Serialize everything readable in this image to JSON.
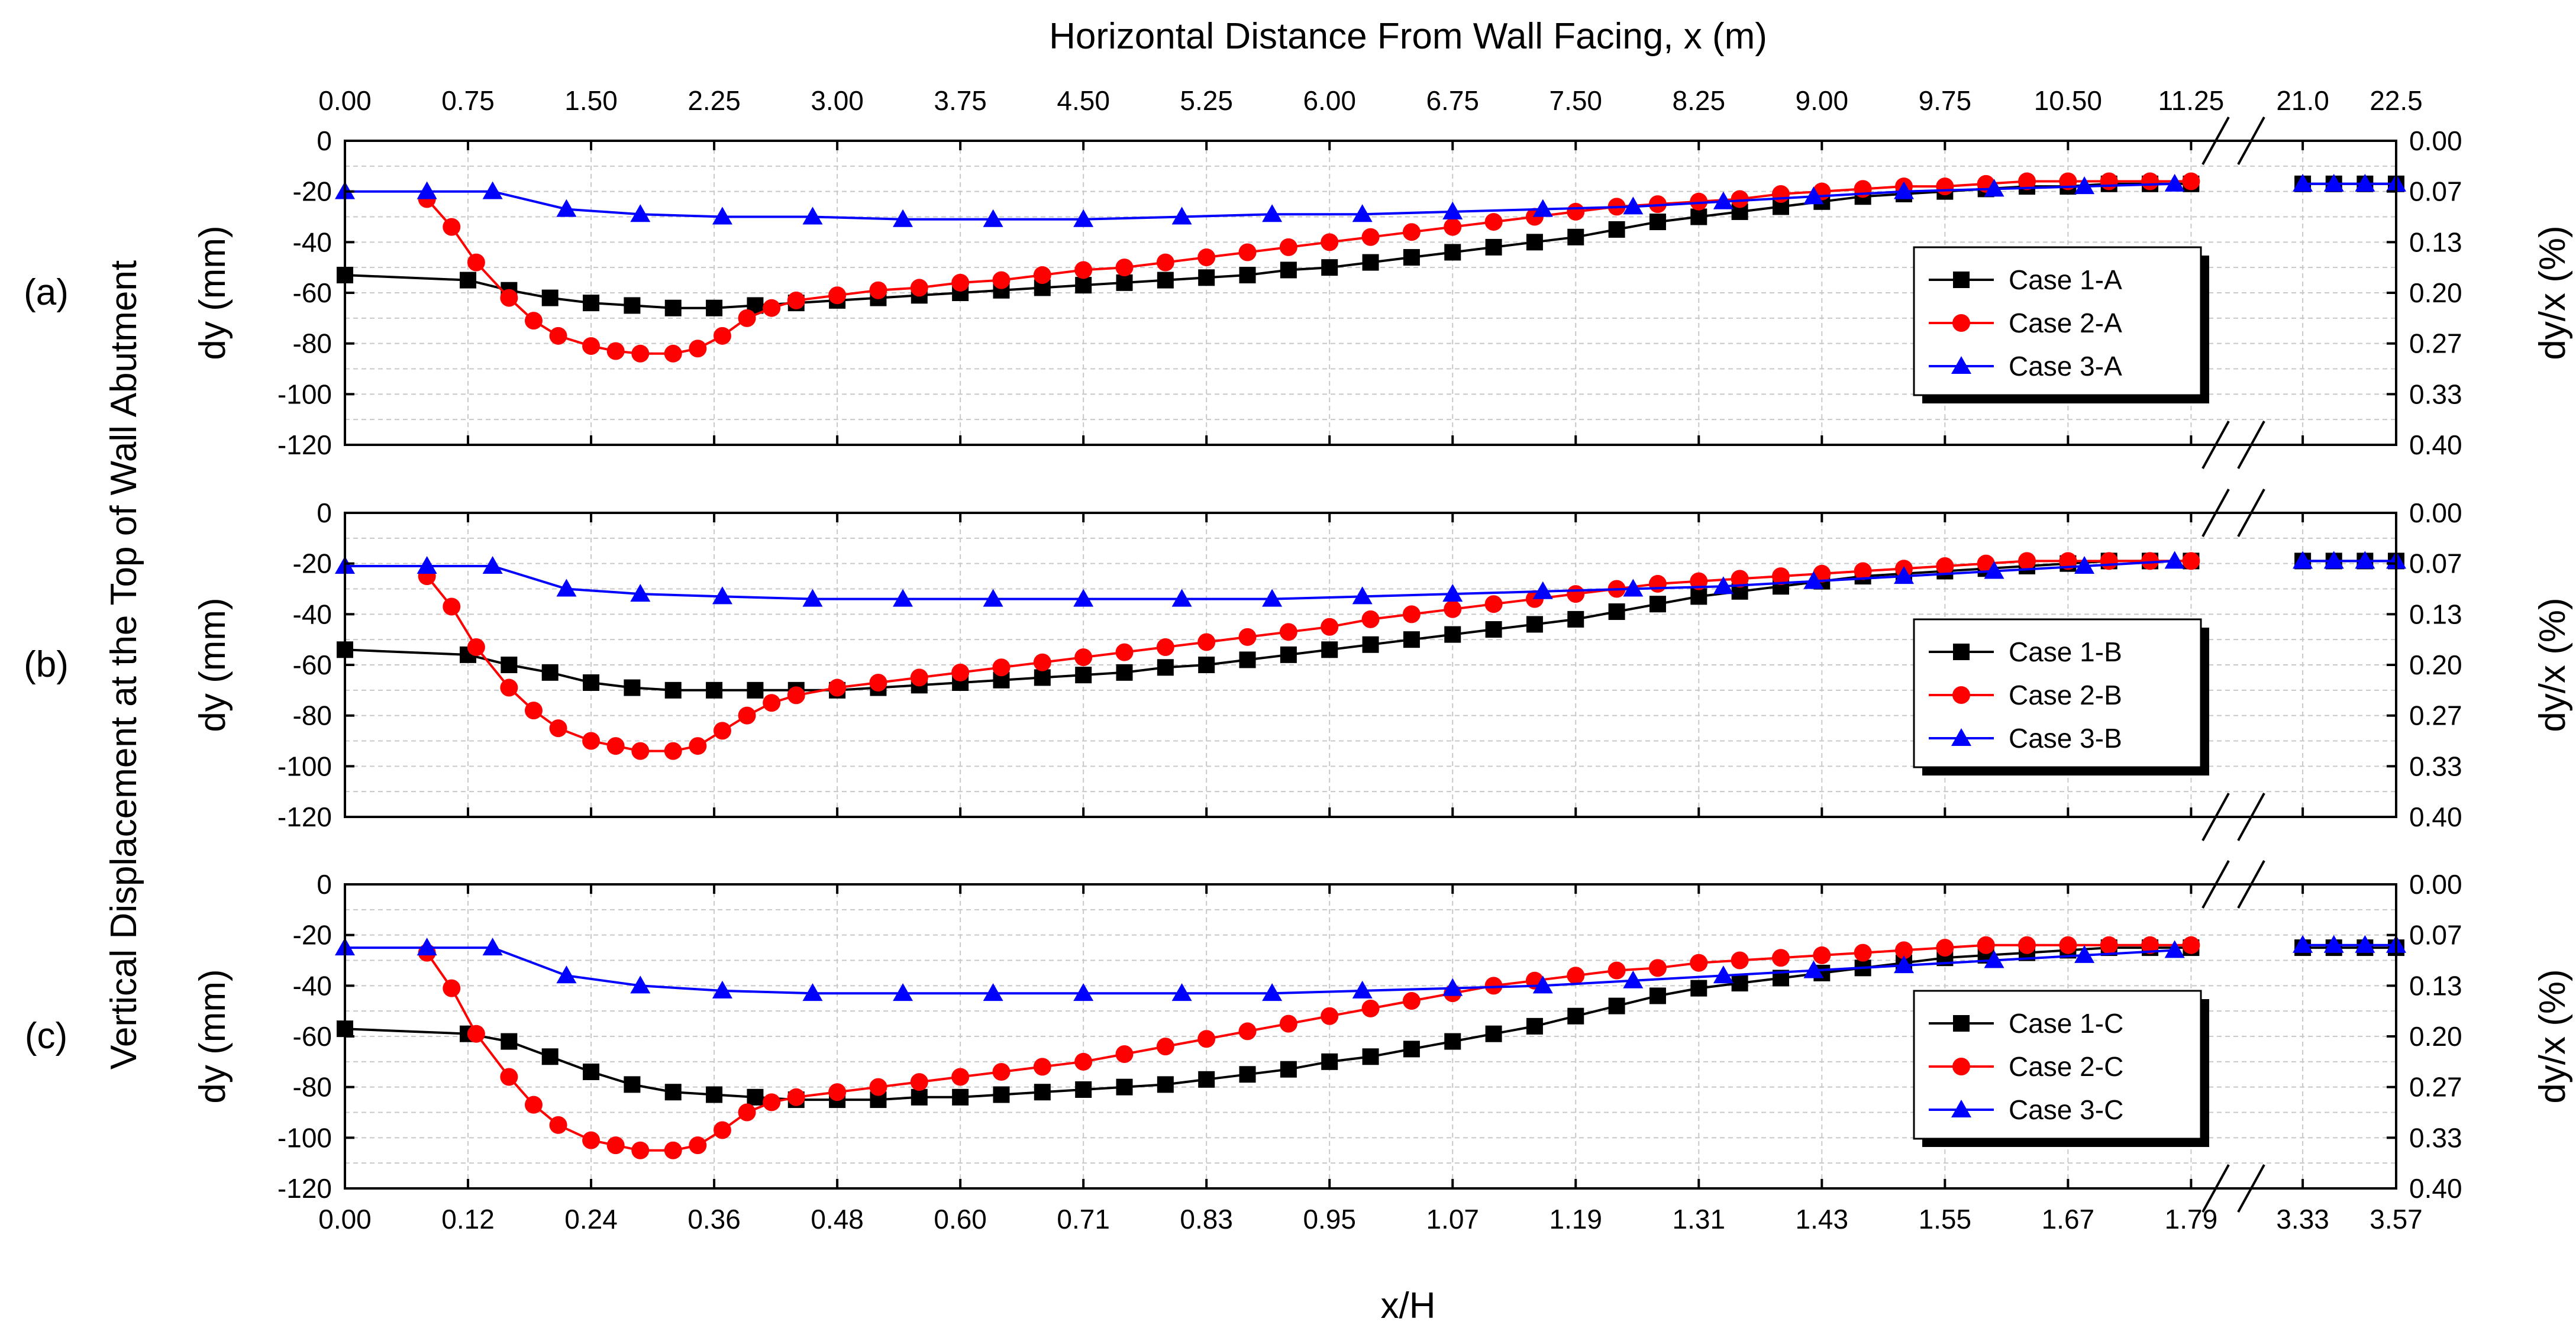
{
  "chart_data": {
    "type": "line",
    "title": "",
    "top_axis": {
      "label": "Horizontal Distance From Wall Facing, x (m)",
      "ticks": [
        "0.00",
        "0.75",
        "1.50",
        "2.25",
        "3.00",
        "3.75",
        "4.50",
        "5.25",
        "6.00",
        "6.75",
        "7.50",
        "8.25",
        "9.00",
        "9.75",
        "10.50",
        "11.25",
        "21.0",
        "22.5"
      ]
    },
    "bottom_axis": {
      "label": "x/H",
      "ticks": [
        "0.00",
        "0.12",
        "0.24",
        "0.36",
        "0.48",
        "0.60",
        "0.71",
        "0.83",
        "0.95",
        "1.07",
        "1.19",
        "1.31",
        "1.43",
        "1.55",
        "1.67",
        "1.79",
        "3.33",
        "3.57"
      ]
    },
    "y_label_common": "Vertical Displacement at the Top of Wall Abutment",
    "y_label_left": "dy (mm)",
    "y_label_right": "dy/x (%)",
    "y_ticks_left": [
      "0",
      "-20",
      "-40",
      "-60",
      "-80",
      "-100",
      "-120"
    ],
    "y_ticks_right": [
      "0.00",
      "0.07",
      "0.13",
      "0.20",
      "0.27",
      "0.33",
      "0.40"
    ],
    "ylim": [
      -120,
      0
    ],
    "x_note": "x in metres; axis break between 11.4 m and 20.6 m; 0.75 m per major tick",
    "panels": [
      {
        "label": "(a)",
        "legend_position": "right-middle",
        "series": [
          {
            "name": "Case 1-A",
            "color": "#000000",
            "marker": "square",
            "x": [
              0,
              0.75,
              1.0,
              1.25,
              1.5,
              1.75,
              2.0,
              2.25,
              2.5,
              2.75,
              3.0,
              3.25,
              3.5,
              3.75,
              4.0,
              4.25,
              4.5,
              4.75,
              5.0,
              5.25,
              5.5,
              5.75,
              6.0,
              6.25,
              6.5,
              6.75,
              7.0,
              7.25,
              7.5,
              7.75,
              8.0,
              8.25,
              8.5,
              8.75,
              9.0,
              9.25,
              9.5,
              9.75,
              10.0,
              10.25,
              10.5,
              10.75,
              11.0,
              11.25,
              21.0,
              21.5,
              22.0,
              22.5
            ],
            "y": [
              -53,
              -55,
              -59,
              -62,
              -64,
              -65,
              -66,
              -66,
              -65,
              -64,
              -63,
              -62,
              -61,
              -60,
              -59,
              -58,
              -57,
              -56,
              -55,
              -54,
              -53,
              -51,
              -50,
              -48,
              -46,
              -44,
              -42,
              -40,
              -38,
              -35,
              -32,
              -30,
              -28,
              -26,
              -24,
              -22,
              -21,
              -20,
              -19,
              -18,
              -18,
              -17,
              -17,
              -17,
              -17,
              -17,
              -17,
              -17
            ]
          },
          {
            "name": "Case 2-A",
            "color": "#ff0000",
            "marker": "circle",
            "x": [
              0.5,
              0.65,
              0.8,
              1.0,
              1.15,
              1.3,
              1.5,
              1.65,
              1.8,
              2.0,
              2.15,
              2.3,
              2.45,
              2.6,
              2.75,
              3.0,
              3.25,
              3.5,
              3.75,
              4.0,
              4.25,
              4.5,
              4.75,
              5.0,
              5.25,
              5.5,
              5.75,
              6.0,
              6.25,
              6.5,
              6.75,
              7.0,
              7.25,
              7.5,
              7.75,
              8.0,
              8.25,
              8.5,
              8.75,
              9.0,
              9.25,
              9.5,
              9.75,
              10.0,
              10.25,
              10.5,
              10.75,
              11.0,
              11.25
            ],
            "y": [
              -23,
              -34,
              -48,
              -62,
              -71,
              -77,
              -81,
              -83,
              -84,
              -84,
              -82,
              -77,
              -70,
              -66,
              -63,
              -61,
              -59,
              -58,
              -56,
              -55,
              -53,
              -51,
              -50,
              -48,
              -46,
              -44,
              -42,
              -40,
              -38,
              -36,
              -34,
              -32,
              -30,
              -28,
              -26,
              -25,
              -24,
              -23,
              -21,
              -20,
              -19,
              -18,
              -18,
              -17,
              -16,
              -16,
              -16,
              -16,
              -16
            ]
          },
          {
            "name": "Case 3-A",
            "color": "#0000ff",
            "marker": "triangle",
            "x": [
              0,
              0.5,
              0.9,
              1.35,
              1.8,
              2.3,
              2.85,
              3.4,
              3.95,
              4.5,
              5.1,
              5.65,
              6.2,
              6.75,
              7.3,
              7.85,
              8.4,
              8.95,
              9.5,
              10.05,
              10.6,
              11.15,
              21.0,
              21.5,
              22.0,
              22.5
            ],
            "y": [
              -20,
              -20,
              -20,
              -27,
              -29,
              -30,
              -30,
              -31,
              -31,
              -31,
              -30,
              -29,
              -29,
              -28,
              -27,
              -26,
              -24,
              -22,
              -20,
              -19,
              -18,
              -17,
              -17,
              -17,
              -17,
              -17
            ]
          }
        ]
      },
      {
        "label": "(b)",
        "legend_position": "right-middle",
        "series": [
          {
            "name": "Case 1-B",
            "color": "#000000",
            "marker": "square",
            "x": [
              0,
              0.75,
              1.0,
              1.25,
              1.5,
              1.75,
              2.0,
              2.25,
              2.5,
              2.75,
              3.0,
              3.25,
              3.5,
              3.75,
              4.0,
              4.25,
              4.5,
              4.75,
              5.0,
              5.25,
              5.5,
              5.75,
              6.0,
              6.25,
              6.5,
              6.75,
              7.0,
              7.25,
              7.5,
              7.75,
              8.0,
              8.25,
              8.5,
              8.75,
              9.0,
              9.25,
              9.5,
              9.75,
              10.0,
              10.25,
              10.5,
              10.75,
              11.0,
              11.25,
              21.0,
              21.5,
              22.0,
              22.5
            ],
            "y": [
              -54,
              -56,
              -60,
              -63,
              -67,
              -69,
              -70,
              -70,
              -70,
              -70,
              -70,
              -69,
              -68,
              -67,
              -66,
              -65,
              -64,
              -63,
              -61,
              -60,
              -58,
              -56,
              -54,
              -52,
              -50,
              -48,
              -46,
              -44,
              -42,
              -39,
              -36,
              -33,
              -31,
              -29,
              -27,
              -25,
              -24,
              -23,
              -22,
              -21,
              -20,
              -19,
              -19,
              -19,
              -19,
              -19,
              -19,
              -19
            ]
          },
          {
            "name": "Case 2-B",
            "color": "#ff0000",
            "marker": "circle",
            "x": [
              0.5,
              0.65,
              0.8,
              1.0,
              1.15,
              1.3,
              1.5,
              1.65,
              1.8,
              2.0,
              2.15,
              2.3,
              2.45,
              2.6,
              2.75,
              3.0,
              3.25,
              3.5,
              3.75,
              4.0,
              4.25,
              4.5,
              4.75,
              5.0,
              5.25,
              5.5,
              5.75,
              6.0,
              6.25,
              6.5,
              6.75,
              7.0,
              7.25,
              7.5,
              7.75,
              8.0,
              8.25,
              8.5,
              8.75,
              9.0,
              9.25,
              9.5,
              9.75,
              10.0,
              10.25,
              10.5,
              10.75,
              11.0,
              11.25
            ],
            "y": [
              -25,
              -37,
              -53,
              -69,
              -78,
              -85,
              -90,
              -92,
              -94,
              -94,
              -92,
              -86,
              -80,
              -75,
              -72,
              -69,
              -67,
              -65,
              -63,
              -61,
              -59,
              -57,
              -55,
              -53,
              -51,
              -49,
              -47,
              -45,
              -42,
              -40,
              -38,
              -36,
              -34,
              -32,
              -30,
              -28,
              -27,
              -26,
              -25,
              -24,
              -23,
              -22,
              -21,
              -20,
              -19,
              -19,
              -19,
              -19,
              -19
            ]
          },
          {
            "name": "Case 3-B",
            "color": "#0000ff",
            "marker": "triangle",
            "x": [
              0,
              0.5,
              0.9,
              1.35,
              1.8,
              2.3,
              2.85,
              3.4,
              3.95,
              4.5,
              5.1,
              5.65,
              6.2,
              6.75,
              7.3,
              7.85,
              8.4,
              8.95,
              9.5,
              10.05,
              10.6,
              11.15,
              21.0,
              21.5,
              22.0,
              22.5
            ],
            "y": [
              -21,
              -21,
              -21,
              -30,
              -32,
              -33,
              -34,
              -34,
              -34,
              -34,
              -34,
              -34,
              -33,
              -32,
              -31,
              -30,
              -29,
              -27,
              -25,
              -23,
              -21,
              -19,
              -19,
              -19,
              -19,
              -19
            ]
          }
        ]
      },
      {
        "label": "(c)",
        "legend_position": "right-middle",
        "series": [
          {
            "name": "Case 1-C",
            "color": "#000000",
            "marker": "square",
            "x": [
              0,
              0.75,
              1.0,
              1.25,
              1.5,
              1.75,
              2.0,
              2.25,
              2.5,
              2.75,
              3.0,
              3.25,
              3.5,
              3.75,
              4.0,
              4.25,
              4.5,
              4.75,
              5.0,
              5.25,
              5.5,
              5.75,
              6.0,
              6.25,
              6.5,
              6.75,
              7.0,
              7.25,
              7.5,
              7.75,
              8.0,
              8.25,
              8.5,
              8.75,
              9.0,
              9.25,
              9.5,
              9.75,
              10.0,
              10.25,
              10.5,
              10.75,
              11.0,
              11.25,
              21.0,
              21.5,
              22.0,
              22.5
            ],
            "y": [
              -57,
              -59,
              -62,
              -68,
              -74,
              -79,
              -82,
              -83,
              -84,
              -85,
              -85,
              -85,
              -84,
              -84,
              -83,
              -82,
              -81,
              -80,
              -79,
              -77,
              -75,
              -73,
              -70,
              -68,
              -65,
              -62,
              -59,
              -56,
              -52,
              -48,
              -44,
              -41,
              -39,
              -37,
              -35,
              -33,
              -31,
              -29,
              -28,
              -27,
              -26,
              -25,
              -25,
              -25,
              -25,
              -25,
              -25,
              -25
            ]
          },
          {
            "name": "Case 2-C",
            "color": "#ff0000",
            "marker": "circle",
            "x": [
              0.5,
              0.65,
              0.8,
              1.0,
              1.15,
              1.3,
              1.5,
              1.65,
              1.8,
              2.0,
              2.15,
              2.3,
              2.45,
              2.6,
              2.75,
              3.0,
              3.25,
              3.5,
              3.75,
              4.0,
              4.25,
              4.5,
              4.75,
              5.0,
              5.25,
              5.5,
              5.75,
              6.0,
              6.25,
              6.5,
              6.75,
              7.0,
              7.25,
              7.5,
              7.75,
              8.0,
              8.25,
              8.5,
              8.75,
              9.0,
              9.25,
              9.5,
              9.75,
              10.0,
              10.25,
              10.5,
              10.75,
              11.0,
              11.25
            ],
            "y": [
              -27,
              -41,
              -59,
              -76,
              -87,
              -95,
              -101,
              -103,
              -105,
              -105,
              -103,
              -97,
              -90,
              -86,
              -84,
              -82,
              -80,
              -78,
              -76,
              -74,
              -72,
              -70,
              -67,
              -64,
              -61,
              -58,
              -55,
              -52,
              -49,
              -46,
              -43,
              -40,
              -38,
              -36,
              -34,
              -33,
              -31,
              -30,
              -29,
              -28,
              -27,
              -26,
              -25,
              -24,
              -24,
              -24,
              -24,
              -24,
              -24
            ]
          },
          {
            "name": "Case 3-C",
            "color": "#0000ff",
            "marker": "triangle",
            "x": [
              0,
              0.5,
              0.9,
              1.35,
              1.8,
              2.3,
              2.85,
              3.4,
              3.95,
              4.5,
              5.1,
              5.65,
              6.2,
              6.75,
              7.3,
              7.85,
              8.4,
              8.95,
              9.5,
              10.05,
              10.6,
              11.15,
              21.0,
              21.5,
              22.0,
              22.5
            ],
            "y": [
              -25,
              -25,
              -25,
              -36,
              -40,
              -42,
              -43,
              -43,
              -43,
              -43,
              -43,
              -43,
              -42,
              -41,
              -40,
              -38,
              -36,
              -34,
              -32,
              -30,
              -28,
              -26,
              -24,
              -24,
              -24,
              -24
            ]
          }
        ]
      }
    ]
  }
}
